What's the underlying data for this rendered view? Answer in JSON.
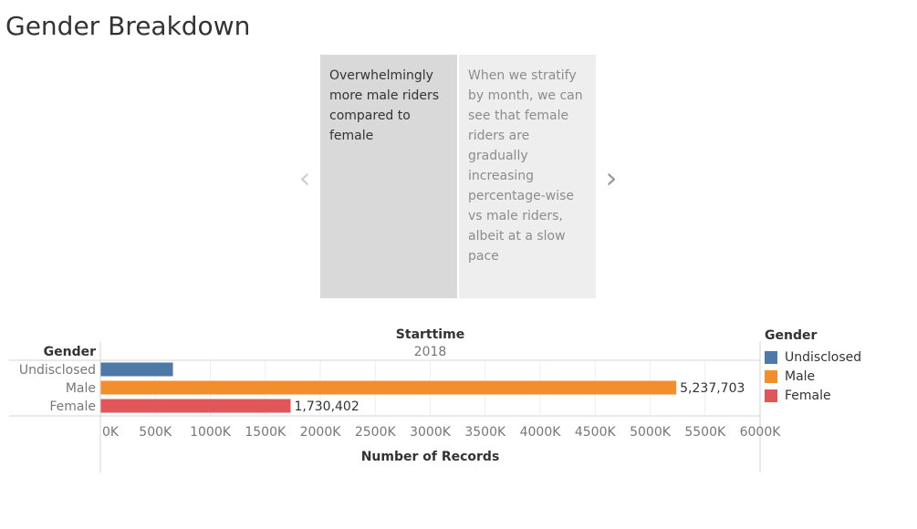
{
  "page": {
    "title": "Gender Breakdown"
  },
  "story": {
    "prev_icon": "chevron-left-icon",
    "next_icon": "chevron-right-icon",
    "points": [
      {
        "text": "Overwhelmingly more male riders compared to female",
        "active": true
      },
      {
        "text": "When we stratify by month, we can see that female riders are gradually increasing percentage-wise vs male riders, albeit at a slow pace",
        "active": false
      }
    ]
  },
  "legend": {
    "title": "Gender",
    "items": [
      {
        "label": "Undisclosed",
        "color": "#4e79a7"
      },
      {
        "label": "Male",
        "color": "#f28e2b"
      },
      {
        "label": "Female",
        "color": "#e15759"
      }
    ]
  },
  "chart_data": {
    "type": "bar",
    "orientation": "horizontal",
    "column_header_title": "Starttime",
    "column_header_value": "2018",
    "row_header": "Gender",
    "xlabel": "Number of Records",
    "xlim": [
      0,
      6000000
    ],
    "x_ticks": [
      "0K",
      "500K",
      "1000K",
      "1500K",
      "2000K",
      "2500K",
      "3000K",
      "3500K",
      "4000K",
      "4500K",
      "5000K",
      "5500K",
      "6000K"
    ],
    "grid": true,
    "categories": [
      "Undisclosed",
      "Male",
      "Female"
    ],
    "values": [
      660000,
      5237703,
      1730402
    ],
    "value_labels": [
      "",
      "5,237,703",
      "1,730,402"
    ],
    "colors": [
      "#4e79a7",
      "#f28e2b",
      "#e15759"
    ]
  }
}
